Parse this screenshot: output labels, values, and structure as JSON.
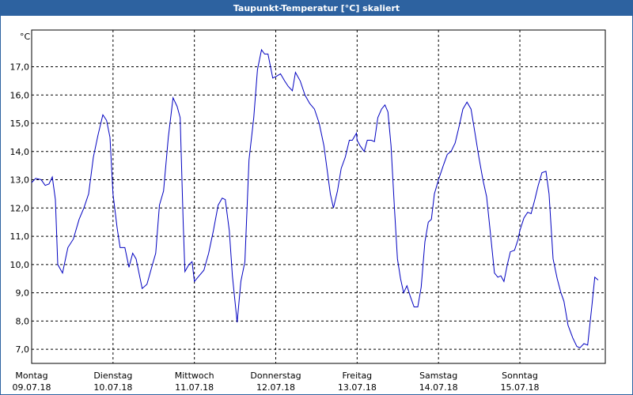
{
  "chart_data": {
    "type": "line",
    "title": "Taupunkt-Temperatur [°C] skaliert",
    "y_label": "°C",
    "x": [
      0,
      1.2,
      2.8,
      4.0,
      5.1,
      6.1,
      7.0,
      7.7,
      9.1,
      10.7,
      12.3,
      14.0,
      15.4,
      16.8,
      18.2,
      19.6,
      21.0,
      22.1,
      23.1,
      24.0,
      25.2,
      26.1,
      27.5,
      28.7,
      29.8,
      30.8,
      32.6,
      34.0,
      35.4,
      36.6,
      37.7,
      38.9,
      40.3,
      41.7,
      42.9,
      43.8,
      44.7,
      45.2,
      46.4,
      47.3,
      48.0,
      49.4,
      50.8,
      52.2,
      53.6,
      55.0,
      56.2,
      57.1,
      58.3,
      59.2,
      60.6,
      61.7,
      62.9,
      64.1,
      65.5,
      66.6,
      67.8,
      68.7,
      69.7,
      71.1,
      72.0,
      73.4,
      74.6,
      75.7,
      76.9,
      77.8,
      79.2,
      80.6,
      82.0,
      83.4,
      84.8,
      86.2,
      87.1,
      88.1,
      89.0,
      90.2,
      91.3,
      92.5,
      93.7,
      94.6,
      95.8,
      96.0,
      96.9,
      98.1,
      99.0,
      100.2,
      101.1,
      102.1,
      103.2,
      104.2,
      105.1,
      106.0,
      107.0,
      107.9,
      108.8,
      109.7,
      110.7,
      111.6,
      112.8,
      113.9,
      114.9,
      116.0,
      117.0,
      117.9,
      118.8,
      120.0,
      121.4,
      122.6,
      123.7,
      124.9,
      126.1,
      127.2,
      128.4,
      129.6,
      130.7,
      131.9,
      133.1,
      134.2,
      135.4,
      136.5,
      137.5,
      138.4,
      139.3,
      140.3,
      141.2,
      142.4,
      143.5,
      144.0,
      145.2,
      146.3,
      147.3,
      148.4,
      149.4,
      150.5,
      151.7,
      152.6,
      153.8,
      155.0,
      156.1,
      157.0,
      158.2,
      159.6,
      160.8,
      161.7,
      162.9,
      164.0,
      165.2,
      166.1,
      167.1
    ],
    "values": [
      12.9,
      13.05,
      13.0,
      12.8,
      12.85,
      13.1,
      12.3,
      10.0,
      9.7,
      10.6,
      10.9,
      11.6,
      12.0,
      12.5,
      13.8,
      14.6,
      15.3,
      15.1,
      14.5,
      12.5,
      11.3,
      10.6,
      10.6,
      9.9,
      10.4,
      10.2,
      9.15,
      9.3,
      9.9,
      10.4,
      12.1,
      12.6,
      14.5,
      15.9,
      15.6,
      15.2,
      11.5,
      9.75,
      10.0,
      10.1,
      9.4,
      9.6,
      9.8,
      10.4,
      11.2,
      12.1,
      12.35,
      12.3,
      11.2,
      9.6,
      7.95,
      9.4,
      10.1,
      13.7,
      15.2,
      16.9,
      17.6,
      17.45,
      17.45,
      16.6,
      16.65,
      16.75,
      16.5,
      16.3,
      16.15,
      16.8,
      16.5,
      16.0,
      15.7,
      15.5,
      15.0,
      14.2,
      13.4,
      12.5,
      12.0,
      12.6,
      13.4,
      13.8,
      14.4,
      14.4,
      14.65,
      14.4,
      14.2,
      14.0,
      14.4,
      14.4,
      14.35,
      15.2,
      15.5,
      15.65,
      15.4,
      14.2,
      12.0,
      10.2,
      9.5,
      9.0,
      9.25,
      8.9,
      8.5,
      8.5,
      9.2,
      10.8,
      11.5,
      11.6,
      12.5,
      13.0,
      13.5,
      13.9,
      14.0,
      14.3,
      14.9,
      15.5,
      15.75,
      15.5,
      14.7,
      13.8,
      13.0,
      12.4,
      11.0,
      9.7,
      9.55,
      9.6,
      9.4,
      10.0,
      10.45,
      10.5,
      10.9,
      11.2,
      11.65,
      11.85,
      11.8,
      12.3,
      12.8,
      13.25,
      13.3,
      12.5,
      10.2,
      9.5,
      9.0,
      8.7,
      7.85,
      7.4,
      7.1,
      7.05,
      7.2,
      7.15,
      8.5,
      9.55,
      9.45
    ],
    "color": "#0000c0",
    "xlim": [
      0,
      169.2
    ],
    "xticks": [
      {
        "value": 0,
        "label": "Montag"
      },
      {
        "value": 24,
        "label": "Dienstag"
      },
      {
        "value": 48,
        "label": "Mittwoch"
      },
      {
        "value": 72,
        "label": "Donnerstag"
      },
      {
        "value": 96,
        "label": "Freitag"
      },
      {
        "value": 120,
        "label": "Samstag"
      },
      {
        "value": 144,
        "label": "Sonntag"
      }
    ],
    "xtick_dates": [
      "09.07.18",
      "10.07.18",
      "11.07.18",
      "12.07.18",
      "13.07.18",
      "14.07.18",
      "15.07.18"
    ],
    "ylim": [
      6.5,
      18.3
    ],
    "yticks": [
      {
        "value": 7,
        "label": "7,0"
      },
      {
        "value": 8,
        "label": "8,0"
      },
      {
        "value": 9,
        "label": "9,0"
      },
      {
        "value": 10,
        "label": "10,0"
      },
      {
        "value": 11,
        "label": "11,0"
      },
      {
        "value": 12,
        "label": "12,0"
      },
      {
        "value": 13,
        "label": "13,0"
      },
      {
        "value": 14,
        "label": "14,0"
      },
      {
        "value": 15,
        "label": "15,0"
      },
      {
        "value": 16,
        "label": "16,0"
      },
      {
        "value": 17,
        "label": "17,0"
      }
    ],
    "grid": true
  }
}
